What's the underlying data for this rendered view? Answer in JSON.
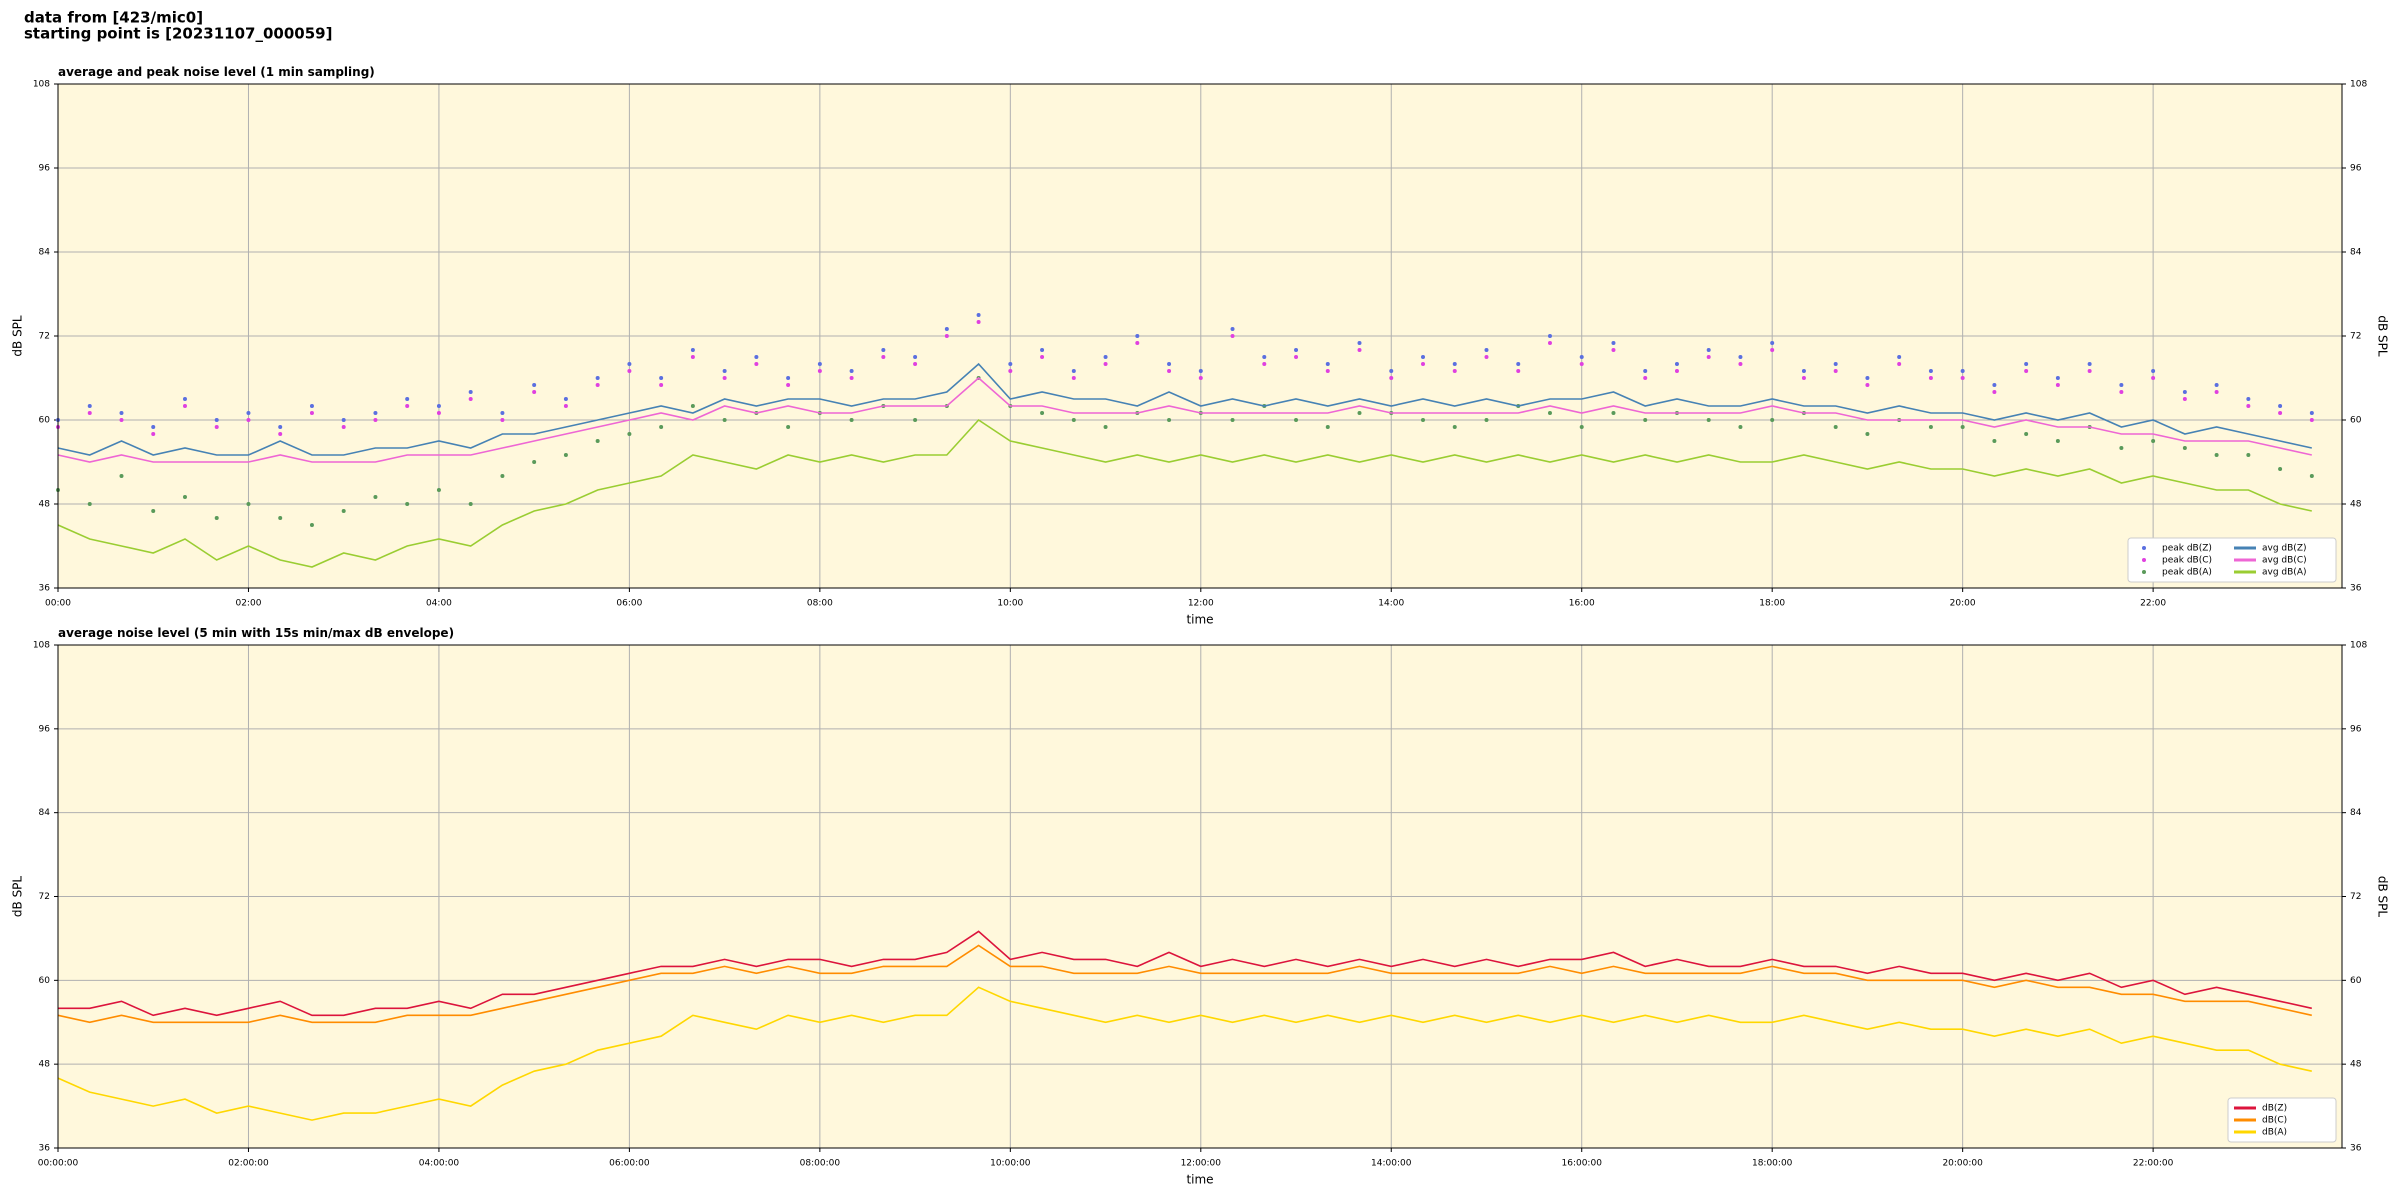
{
  "header": {
    "line1": "data from [423/mic0]",
    "line2": "starting point is [20231107_000059]"
  },
  "chart_data": [
    {
      "type": "line",
      "title": "average and peak noise level (1 min sampling)",
      "xlabel": "time",
      "ylabel": "dB SPL",
      "x": [
        "00:00",
        "00:20",
        "00:40",
        "01:00",
        "01:20",
        "01:40",
        "02:00",
        "02:20",
        "02:40",
        "03:00",
        "03:20",
        "03:40",
        "04:00",
        "04:20",
        "04:40",
        "05:00",
        "05:20",
        "05:40",
        "06:00",
        "06:20",
        "06:40",
        "07:00",
        "07:20",
        "07:40",
        "08:00",
        "08:20",
        "08:40",
        "09:00",
        "09:20",
        "09:40",
        "10:00",
        "10:20",
        "10:40",
        "11:00",
        "11:20",
        "11:40",
        "12:00",
        "12:20",
        "12:40",
        "13:00",
        "13:20",
        "13:40",
        "14:00",
        "14:20",
        "14:40",
        "15:00",
        "15:20",
        "15:40",
        "16:00",
        "16:20",
        "16:40",
        "17:00",
        "17:20",
        "17:40",
        "18:00",
        "18:20",
        "18:40",
        "19:00",
        "19:20",
        "19:40",
        "20:00",
        "20:20",
        "20:40",
        "21:00",
        "21:20",
        "21:40",
        "22:00",
        "22:20",
        "22:40",
        "23:00",
        "23:20",
        "23:40"
      ],
      "xlim": [
        "00:00",
        "23:59"
      ],
      "xticks": [
        "00:00",
        "02:00",
        "04:00",
        "06:00",
        "08:00",
        "10:00",
        "12:00",
        "14:00",
        "16:00",
        "18:00",
        "20:00",
        "22:00"
      ],
      "ylim": [
        36,
        108
      ],
      "yticks": [
        36,
        48,
        60,
        72,
        84,
        96,
        108
      ],
      "grid": true,
      "background": "#fff8dc",
      "legend": "lower right",
      "legend_columns": 2,
      "series": [
        {
          "name": "peak dB(Z)",
          "style": "markers",
          "color": "#5b6fe0",
          "values": [
            60,
            62,
            61,
            59,
            63,
            60,
            61,
            59,
            62,
            60,
            61,
            63,
            62,
            64,
            61,
            65,
            63,
            66,
            68,
            66,
            70,
            67,
            69,
            66,
            68,
            67,
            70,
            69,
            73,
            75,
            68,
            70,
            67,
            69,
            72,
            68,
            67,
            73,
            69,
            70,
            68,
            71,
            67,
            69,
            68,
            70,
            68,
            72,
            69,
            71,
            67,
            68,
            70,
            69,
            71,
            67,
            68,
            66,
            69,
            67,
            67,
            65,
            68,
            66,
            68,
            65,
            67,
            64,
            65,
            63,
            62,
            61
          ]
        },
        {
          "name": "peak dB(C)",
          "style": "markers",
          "color": "#e040e0",
          "values": [
            59,
            61,
            60,
            58,
            62,
            59,
            60,
            58,
            61,
            59,
            60,
            62,
            61,
            63,
            60,
            64,
            62,
            65,
            67,
            65,
            69,
            66,
            68,
            65,
            67,
            66,
            69,
            68,
            72,
            74,
            67,
            69,
            66,
            68,
            71,
            67,
            66,
            72,
            68,
            69,
            67,
            70,
            66,
            68,
            67,
            69,
            67,
            71,
            68,
            70,
            66,
            67,
            69,
            68,
            70,
            66,
            67,
            65,
            68,
            66,
            66,
            64,
            67,
            65,
            67,
            64,
            66,
            63,
            64,
            62,
            61,
            60
          ]
        },
        {
          "name": "peak dB(A)",
          "style": "markers",
          "color": "#5a9a5a",
          "values": [
            50,
            48,
            52,
            47,
            49,
            46,
            48,
            46,
            45,
            47,
            49,
            48,
            50,
            48,
            52,
            54,
            55,
            57,
            58,
            59,
            62,
            60,
            61,
            59,
            61,
            60,
            62,
            60,
            62,
            66,
            62,
            61,
            60,
            59,
            61,
            60,
            61,
            60,
            62,
            60,
            59,
            61,
            61,
            60,
            59,
            60,
            62,
            61,
            59,
            61,
            60,
            61,
            60,
            59,
            60,
            61,
            59,
            58,
            60,
            59,
            59,
            57,
            58,
            57,
            59,
            56,
            57,
            56,
            55,
            55,
            53,
            52
          ]
        },
        {
          "name": "avg dB(Z)",
          "style": "line",
          "color": "#4682b4",
          "values": [
            56,
            55,
            57,
            55,
            56,
            55,
            55,
            57,
            55,
            55,
            56,
            56,
            57,
            56,
            58,
            58,
            59,
            60,
            61,
            62,
            61,
            63,
            62,
            63,
            63,
            62,
            63,
            63,
            64,
            68,
            63,
            64,
            63,
            63,
            62,
            64,
            62,
            63,
            62,
            63,
            62,
            63,
            62,
            63,
            62,
            63,
            62,
            63,
            63,
            64,
            62,
            63,
            62,
            62,
            63,
            62,
            62,
            61,
            62,
            61,
            61,
            60,
            61,
            60,
            61,
            59,
            60,
            58,
            59,
            58,
            57,
            56
          ]
        },
        {
          "name": "avg dB(C)",
          "style": "line",
          "color": "#ee66d4",
          "values": [
            55,
            54,
            55,
            54,
            54,
            54,
            54,
            55,
            54,
            54,
            54,
            55,
            55,
            55,
            56,
            57,
            58,
            59,
            60,
            61,
            60,
            62,
            61,
            62,
            61,
            61,
            62,
            62,
            62,
            66,
            62,
            62,
            61,
            61,
            61,
            62,
            61,
            61,
            61,
            61,
            61,
            62,
            61,
            61,
            61,
            61,
            61,
            62,
            61,
            62,
            61,
            61,
            61,
            61,
            62,
            61,
            61,
            60,
            60,
            60,
            60,
            59,
            60,
            59,
            59,
            58,
            58,
            57,
            57,
            57,
            56,
            55
          ]
        },
        {
          "name": "avg dB(A)",
          "style": "line",
          "color": "#9acd32",
          "values": [
            45,
            43,
            42,
            41,
            43,
            40,
            42,
            40,
            39,
            41,
            40,
            42,
            43,
            42,
            45,
            47,
            48,
            50,
            51,
            52,
            55,
            54,
            53,
            55,
            54,
            55,
            54,
            55,
            55,
            60,
            57,
            56,
            55,
            54,
            55,
            54,
            55,
            54,
            55,
            54,
            55,
            54,
            55,
            54,
            55,
            54,
            55,
            54,
            55,
            54,
            55,
            54,
            55,
            54,
            54,
            55,
            54,
            53,
            54,
            53,
            53,
            52,
            53,
            52,
            53,
            51,
            52,
            51,
            50,
            50,
            48,
            47
          ]
        }
      ]
    },
    {
      "type": "line",
      "title": "average noise level (5 min with 15s min/max dB envelope)",
      "xlabel": "time",
      "ylabel": "dB SPL",
      "x": [
        "00:00",
        "00:20",
        "00:40",
        "01:00",
        "01:20",
        "01:40",
        "02:00",
        "02:20",
        "02:40",
        "03:00",
        "03:20",
        "03:40",
        "04:00",
        "04:20",
        "04:40",
        "05:00",
        "05:20",
        "05:40",
        "06:00",
        "06:20",
        "06:40",
        "07:00",
        "07:20",
        "07:40",
        "08:00",
        "08:20",
        "08:40",
        "09:00",
        "09:20",
        "09:40",
        "10:00",
        "10:20",
        "10:40",
        "11:00",
        "11:20",
        "11:40",
        "12:00",
        "12:20",
        "12:40",
        "13:00",
        "13:20",
        "13:40",
        "14:00",
        "14:20",
        "14:40",
        "15:00",
        "15:20",
        "15:40",
        "16:00",
        "16:20",
        "16:40",
        "17:00",
        "17:20",
        "17:40",
        "18:00",
        "18:20",
        "18:40",
        "19:00",
        "19:20",
        "19:40",
        "20:00",
        "20:20",
        "20:40",
        "21:00",
        "21:20",
        "21:40",
        "22:00",
        "22:20",
        "22:40",
        "23:00",
        "23:20",
        "23:40"
      ],
      "xlim": [
        "00:00",
        "23:59"
      ],
      "xticks": [
        "00:00:00",
        "02:00:00",
        "04:00:00",
        "06:00:00",
        "08:00:00",
        "10:00:00",
        "12:00:00",
        "14:00:00",
        "16:00:00",
        "18:00:00",
        "20:00:00",
        "22:00:00"
      ],
      "ylim": [
        36,
        108
      ],
      "yticks": [
        36,
        48,
        60,
        72,
        84,
        96,
        108
      ],
      "grid": true,
      "background": "#fff8dc",
      "legend": "lower right",
      "legend_columns": 1,
      "series": [
        {
          "name": "dB(Z)",
          "style": "line",
          "color": "#dc143c",
          "values": [
            56,
            56,
            57,
            55,
            56,
            55,
            56,
            57,
            55,
            55,
            56,
            56,
            57,
            56,
            58,
            58,
            59,
            60,
            61,
            62,
            62,
            63,
            62,
            63,
            63,
            62,
            63,
            63,
            64,
            67,
            63,
            64,
            63,
            63,
            62,
            64,
            62,
            63,
            62,
            63,
            62,
            63,
            62,
            63,
            62,
            63,
            62,
            63,
            63,
            64,
            62,
            63,
            62,
            62,
            63,
            62,
            62,
            61,
            62,
            61,
            61,
            60,
            61,
            60,
            61,
            59,
            60,
            58,
            59,
            58,
            57,
            56
          ]
        },
        {
          "name": "dB(C)",
          "style": "line",
          "color": "#ff8c00",
          "values": [
            55,
            54,
            55,
            54,
            54,
            54,
            54,
            55,
            54,
            54,
            54,
            55,
            55,
            55,
            56,
            57,
            58,
            59,
            60,
            61,
            61,
            62,
            61,
            62,
            61,
            61,
            62,
            62,
            62,
            65,
            62,
            62,
            61,
            61,
            61,
            62,
            61,
            61,
            61,
            61,
            61,
            62,
            61,
            61,
            61,
            61,
            61,
            62,
            61,
            62,
            61,
            61,
            61,
            61,
            62,
            61,
            61,
            60,
            60,
            60,
            60,
            59,
            60,
            59,
            59,
            58,
            58,
            57,
            57,
            57,
            56,
            55
          ]
        },
        {
          "name": "dB(A)",
          "style": "line",
          "color": "#ffd700",
          "values": [
            46,
            44,
            43,
            42,
            43,
            41,
            42,
            41,
            40,
            41,
            41,
            42,
            43,
            42,
            45,
            47,
            48,
            50,
            51,
            52,
            55,
            54,
            53,
            55,
            54,
            55,
            54,
            55,
            55,
            59,
            57,
            56,
            55,
            54,
            55,
            54,
            55,
            54,
            55,
            54,
            55,
            54,
            55,
            54,
            55,
            54,
            55,
            54,
            55,
            54,
            55,
            54,
            55,
            54,
            54,
            55,
            54,
            53,
            54,
            53,
            53,
            52,
            53,
            52,
            53,
            51,
            52,
            51,
            50,
            50,
            48,
            47
          ]
        }
      ]
    }
  ]
}
